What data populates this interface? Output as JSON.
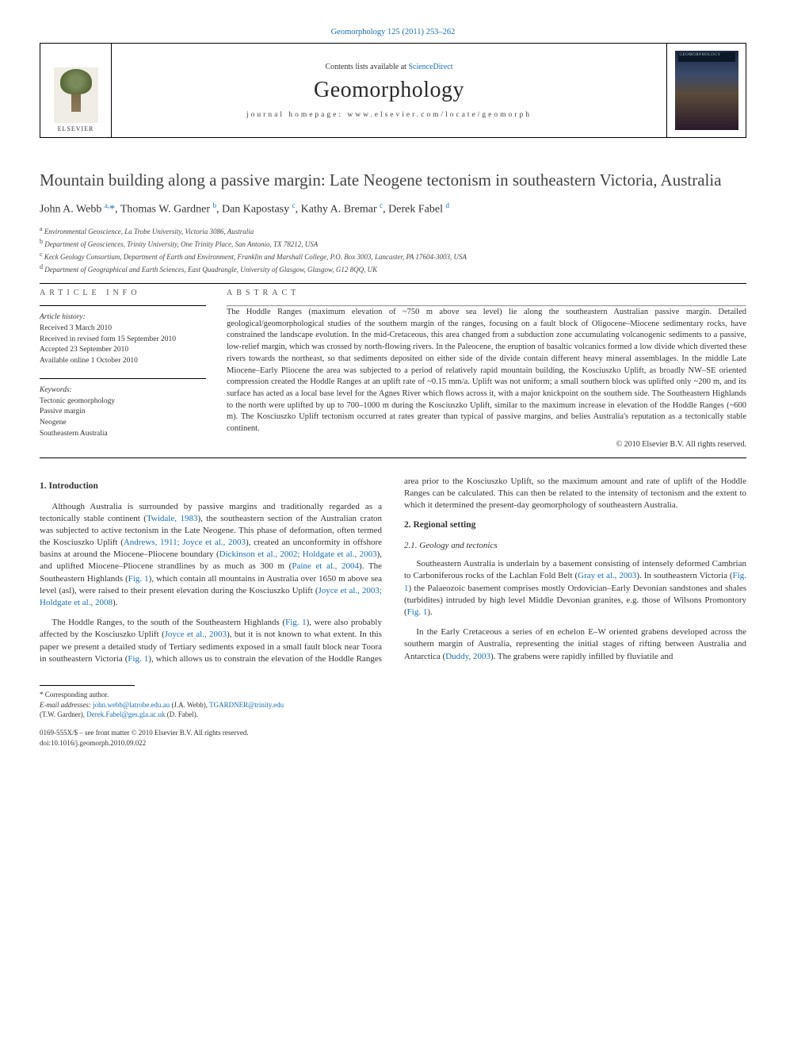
{
  "citation": "Geomorphology 125 (2011) 253–262",
  "banner": {
    "contents_prefix": "Contents lists available at ",
    "contents_link": "ScienceDirect",
    "journal": "Geomorphology",
    "homepage_label": "journal homepage: www.elsevier.com/locate/geomorph",
    "publisher": "ELSEVIER",
    "cover_title": "GEOMORPHOLOGY"
  },
  "article": {
    "title": "Mountain building along a passive margin: Late Neogene tectonism in southeastern Victoria, Australia",
    "authors_html": "John A. Webb <sup>a,</sup><span class='star'>*</span>, Thomas W. Gardner <sup>b</sup>, Dan Kapostasy <sup>c</sup>, Kathy A. Bremar <sup>c</sup>, Derek Fabel <sup>d</sup>",
    "affiliations": [
      "a  Environmental Geoscience, La Trobe University, Victoria 3086, Australia",
      "b  Department of Geosciences, Trinity University, One Trinity Place, San Antonio, TX 78212, USA",
      "c  Keck Geology Consortium, Department of Earth and Environment, Franklin and Marshall College, P.O. Box 3003, Lancaster, PA 17604-3003, USA",
      "d  Department of Geographical and Earth Sciences, East Quadrangle, University of Glasgow, Glasgow, G12 8QQ, UK"
    ]
  },
  "info": {
    "label": "ARTICLE INFO",
    "history_label": "Article history:",
    "history": [
      "Received 3 March 2010",
      "Received in revised form 15 September 2010",
      "Accepted 23 September 2010",
      "Available online 1 October 2010"
    ],
    "keywords_label": "Keywords:",
    "keywords": [
      "Tectonic geomorphology",
      "Passive margin",
      "Neogene",
      "Southeastern Australia"
    ]
  },
  "abstract": {
    "label": "ABSTRACT",
    "text": "The Hoddle Ranges (maximum elevation of ~750 m above sea level) lie along the southeastern Australian passive margin. Detailed geological/geomorphological studies of the southern margin of the ranges, focusing on a fault block of Oligocene–Miocene sedimentary rocks, have constrained the landscape evolution. In the mid-Cretaceous, this area changed from a subduction zone accumulating volcanogenic sediments to a passive, low-relief margin, which was crossed by north-flowing rivers. In the Paleocene, the eruption of basaltic volcanics formed a low divide which diverted these rivers towards the northeast, so that sediments deposited on either side of the divide contain different heavy mineral assemblages. In the middle Late Miocene–Early Pliocene the area was subjected to a period of relatively rapid mountain building, the Kosciuszko Uplift, as broadly NW–SE oriented compression created the Hoddle Ranges at an uplift rate of ~0.15 mm/a. Uplift was not uniform; a small southern block was uplifted only ~200 m, and its surface has acted as a local base level for the Agnes River which flows across it, with a major knickpoint on the southern side. The Southeastern Highlands to the north were uplifted by up to 700–1000 m during the Kosciuszko Uplift, similar to the maximum increase in elevation of the Hoddle Ranges (~600 m). The Kosciuszko Uplift tectonism occurred at rates greater than typical of passive margins, and belies Australia's reputation as a tectonically stable continent.",
    "copyright": "© 2010 Elsevier B.V. All rights reserved."
  },
  "body": {
    "h_intro": "1. Introduction",
    "p1_pre": "Although Australia is surrounded by passive margins and traditionally regarded as a tectonically stable continent (",
    "p1_l1": "Twidale, 1983",
    "p1_m1": "), the southeastern section of the Australian craton was subjected to active tectonism in the Late Neogene. This phase of deformation, often termed the Kosciuszko Uplift (",
    "p1_l2": "Andrews, 1911; Joyce et al., 2003",
    "p1_m2": "), created an unconformity in offshore basins at around the Miocene–Pliocene boundary (",
    "p1_l3": "Dickinson et al., 2002; Holdgate et al., 2003",
    "p1_m3": "), and uplifted Miocene–Pliocene strandlines by as much as 300 m (",
    "p1_l4": "Paine et al., 2004",
    "p1_m4": "). The Southeastern Highlands (",
    "p1_l5": "Fig. 1",
    "p1_m5": "), which contain all mountains in Australia over 1650 m above sea level (asl), were raised to their present elevation during the Kosciuszko Uplift (",
    "p1_l6": "Joyce et al., 2003; Holdgate et al., 2008",
    "p1_post": ").",
    "p2_pre": "The Hoddle Ranges, to the south of the Southeastern Highlands (",
    "p2_l1": "Fig. 1",
    "p2_m1": "), were also probably affected by the Kosciuszko Uplift (",
    "p2_l2": "Joyce et al., 2003",
    "p2_m2": "), but it is not known to what extent. In this paper we present a detailed study of Tertiary sediments exposed in a small fault block near Toora in southeastern Victoria (",
    "p2_l3": "Fig. 1",
    "p2_post": "), which allows us to constrain the elevation of the Hoddle Ranges area prior to the Kosciuszko Uplift, so the maximum amount and rate of uplift of the Hoddle Ranges can be calculated. This can then be related to the intensity of tectonism and the extent to which it determined the present-day geomorphology of southeastern Australia.",
    "h_regional": "2. Regional setting",
    "h_geology": "2.1. Geology and tectonics",
    "p3_pre": "Southeastern Australia is underlain by a basement consisting of intensely deformed Cambrian to Carboniferous rocks of the Lachlan Fold Belt (",
    "p3_l1": "Gray et al., 2003",
    "p3_m1": "). In southeastern Victoria (",
    "p3_l2": "Fig. 1",
    "p3_m2": ") the Palaeozoic basement comprises mostly Ordovician–Early Devonian sandstones and shales (turbidites) intruded by high level Middle Devonian granites, e.g. those of Wilsons Promontory (",
    "p3_l3": "Fig. 1",
    "p3_post": ").",
    "p4_pre": "In the Early Cretaceous a series of en echelon E–W oriented grabens developed across the southern margin of Australia, representing the initial stages of rifting between Australia and Antarctica (",
    "p4_l1": "Duddy, 2003",
    "p4_post": "). The grabens were rapidly infilled by fluviatile and"
  },
  "footnotes": {
    "corr": "* Corresponding author.",
    "email_label": "E-mail addresses: ",
    "e1": "john.webb@latrobe.edu.au",
    "e1_who": " (J.A. Webb), ",
    "e2": "TGARDNER@trinity.edu",
    "e2_who": " (T.W. Gardner), ",
    "e3": "Derek.Fabel@ges.gla.ac.uk",
    "e3_who": " (D. Fabel)."
  },
  "doi": {
    "front": "0169-555X/$ – see front matter © 2010 Elsevier B.V. All rights reserved.",
    "doi": "doi:10.1016/j.geomorph.2010.09.022"
  },
  "colors": {
    "link": "#1a6fb3",
    "text": "#333333",
    "rule": "#000000"
  }
}
